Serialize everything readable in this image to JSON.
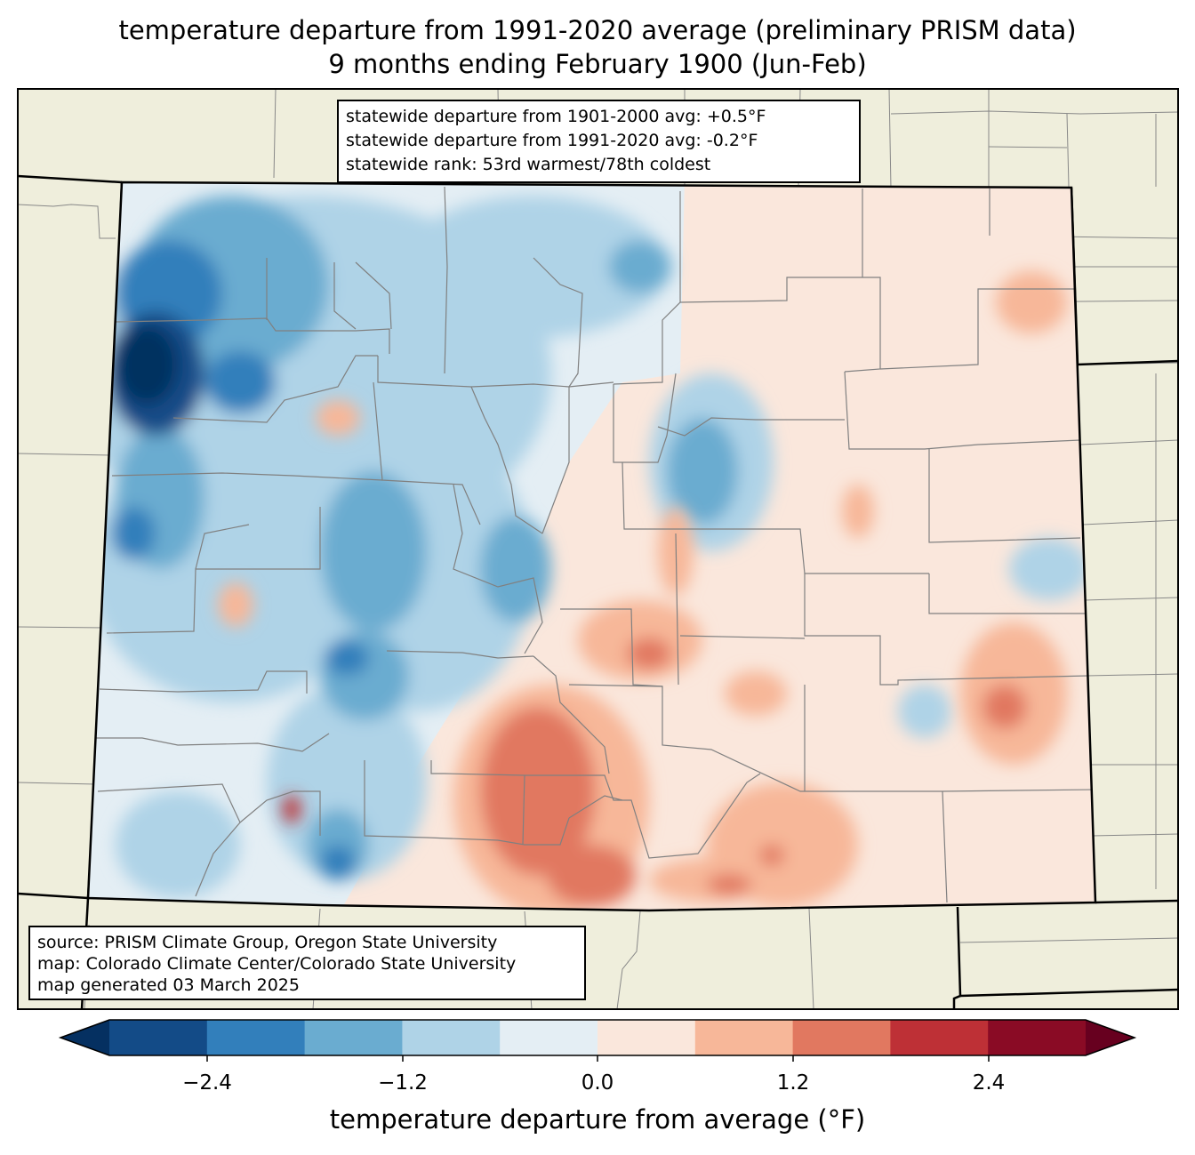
{
  "title": {
    "line1": "temperature departure from 1991-2020 average (preliminary PRISM data)",
    "line2": "9 months ending February 1900 (Jun-Feb)"
  },
  "stats": {
    "line1": "statewide departure from 1901-2000 avg: +0.5°F",
    "line2": "statewide departure from 1991-2020 avg: -0.2°F",
    "line3": "statewide rank: 53rd warmest/78th coldest"
  },
  "credits": {
    "line1": "source: PRISM Climate Group, Oregon State University",
    "line2": "map: Colorado Climate Center/Colorado State University",
    "line3": "map generated 03 March 2025"
  },
  "colorbar": {
    "label": "temperature departure from average (°F)",
    "ticks": [
      "−2.4",
      "−1.2",
      "0.0",
      "1.2",
      "2.4"
    ],
    "bins": [
      {
        "range": "< -3.0",
        "color": "#053061"
      },
      {
        "range": "-3.0 to -2.4",
        "color": "#134b87"
      },
      {
        "range": "-2.4 to -1.8",
        "color": "#327fbb"
      },
      {
        "range": "-1.8 to -1.2",
        "color": "#6aacd0"
      },
      {
        "range": "-1.2 to -0.6",
        "color": "#afd3e7"
      },
      {
        "range": "-0.6 to 0.0",
        "color": "#e4eef4"
      },
      {
        "range": "0.0 to 0.6",
        "color": "#fae7dc"
      },
      {
        "range": "0.6 to 1.2",
        "color": "#f7b799"
      },
      {
        "range": "1.2 to 1.8",
        "color": "#e17860"
      },
      {
        "range": "1.8 to 2.4",
        "color": "#be3036"
      },
      {
        "range": "2.4 to 3.0",
        "color": "#8a0b25"
      },
      {
        "range": "> 3.0",
        "color": "#67001f"
      }
    ]
  },
  "colors": {
    "land_background": "#efeedc",
    "county_lines": "#808080",
    "state_border": "#000000"
  }
}
